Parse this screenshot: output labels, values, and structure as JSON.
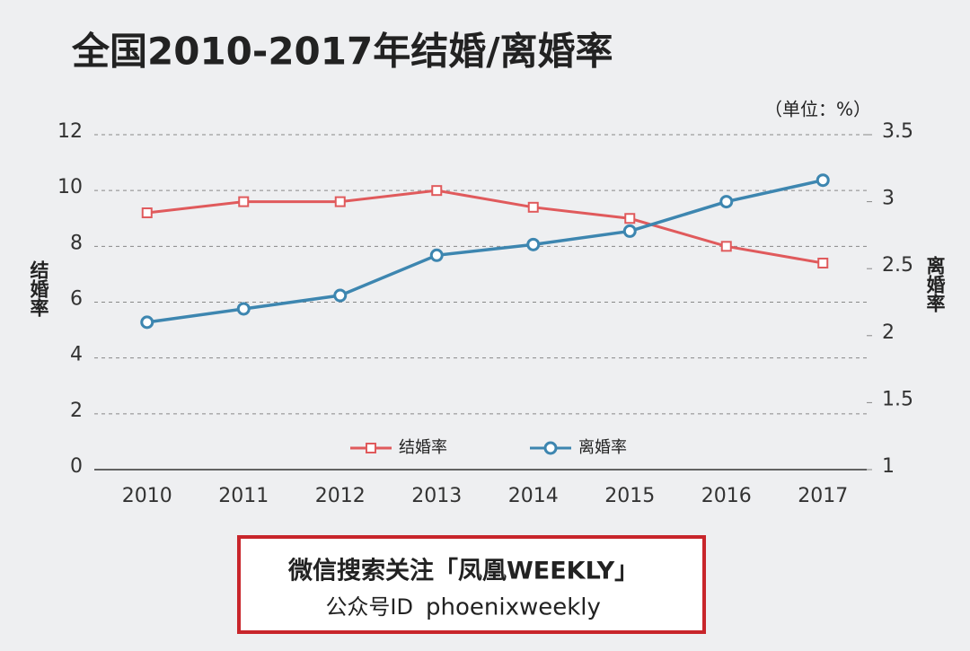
{
  "chart_data": {
    "type": "line",
    "title": "全国2010-2017年结婚/离婚率",
    "unit_note": "（单位：%）",
    "y_label": "结婚率",
    "y2_label": "离婚率",
    "categories": [
      "2010",
      "2011",
      "2012",
      "2013",
      "2014",
      "2015",
      "2016",
      "2017"
    ],
    "series": [
      {
        "name": "结婚率",
        "color": "#e05a5c",
        "marker": "square",
        "values": [
          9.2,
          9.6,
          9.6,
          10.0,
          9.4,
          9.0,
          8.0,
          7.4
        ]
      },
      {
        "name": "离婚率",
        "color": "#3d86b0",
        "marker": "circle",
        "axis": "y2",
        "values": [
          2.1,
          2.2,
          2.3,
          2.6,
          2.68,
          2.78,
          3.0,
          3.16
        ]
      }
    ],
    "ylim": [
      0,
      12
    ],
    "yticks": [
      0,
      2,
      4,
      6,
      8,
      10,
      12
    ],
    "y2lim": [
      1,
      3.5
    ],
    "y2ticks": [
      1,
      1.5,
      2,
      2.5,
      3,
      3.5
    ],
    "grid": true,
    "legend": "lower center"
  },
  "banner": {
    "text": "微信搜索关注",
    "brand": "「凤凰WEEKLY」",
    "id_label": "公众号ID",
    "id_value": "phoenixweekly"
  }
}
